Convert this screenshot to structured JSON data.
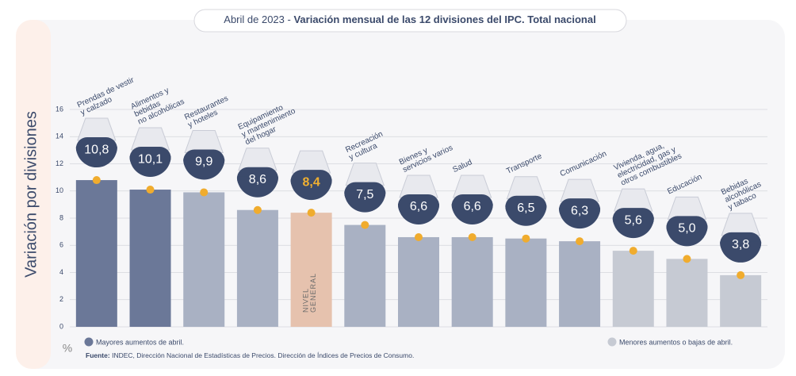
{
  "chart_data": {
    "type": "bar",
    "title_prefix": "Abril de 2023 -",
    "title": "Variación mensual de las 12 divisiones del IPC. Total nacional",
    "y_label": "Variación por divisiones",
    "y_unit": "%",
    "categories": [
      "Prendas de vestir\ny calzado",
      "Alimentos y\nbebidas\nno alcohólicas",
      "Restaurantes\ny hoteles",
      "Equipamiento\ny mantenimiento\ndel hogar",
      null,
      "Recreación\ny cultura",
      "Bienes y\nservicios varios",
      "Salud",
      "Transporte",
      "Comunicación",
      "Vivienda, agua,\nelectricidad, gas y\notros combustibles",
      "Educación",
      "Bebidas\nalcohólicas\ny tabaco"
    ],
    "values": [
      10.8,
      10.1,
      9.9,
      8.6,
      8.4,
      7.5,
      6.6,
      6.6,
      6.5,
      6.3,
      5.6,
      5.0,
      3.8
    ],
    "value_labels": [
      "10,8",
      "10,1",
      "9,9",
      "8,6",
      "8,4",
      "7,5",
      "6,6",
      "6,6",
      "6,5",
      "6,3",
      "5,6",
      "5,0",
      "3,8"
    ],
    "colors": [
      "#6b7898",
      "#6b7898",
      "#a9b1c3",
      "#a9b1c3",
      "#e6c2ae",
      "#a9b1c3",
      "#a9b1c3",
      "#a9b1c3",
      "#a9b1c3",
      "#a9b1c3",
      "#c6cad3",
      "#c6cad3",
      "#c6cad3"
    ],
    "marker_color": "#f0ac2e",
    "annotation": "NIVEL\nGENERAL",
    "ylim": [
      0,
      16
    ],
    "yticks": [
      0,
      2,
      4,
      6,
      8,
      10,
      12,
      14,
      16
    ],
    "grid": true,
    "legend": [
      {
        "name": "Mayores aumentos de abril.",
        "color": "#6b7898"
      },
      {
        "name": "Menores aumentos o bajas de abril.",
        "color": "#c6cad3"
      }
    ],
    "source_label": "Fuente:",
    "source": "INDEC, Dirección Nacional de Estadísticas de Precios. Dirección de Índices de Precios de Consumo."
  }
}
